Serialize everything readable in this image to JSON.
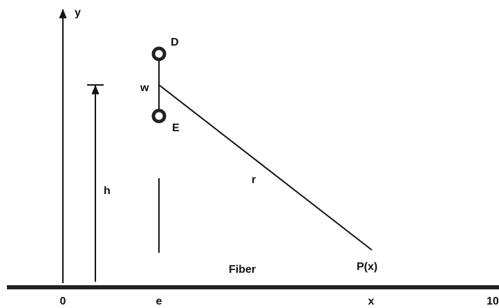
{
  "labels": {
    "y_axis": "y",
    "dipole_top": "D",
    "dipole_mid": "w",
    "dipole_bottom": "E",
    "height": "h",
    "distance": "r",
    "fiber": "Fiber",
    "point": "P(x)"
  },
  "axis_labels": [
    "0",
    "e",
    "x",
    "10"
  ]
}
